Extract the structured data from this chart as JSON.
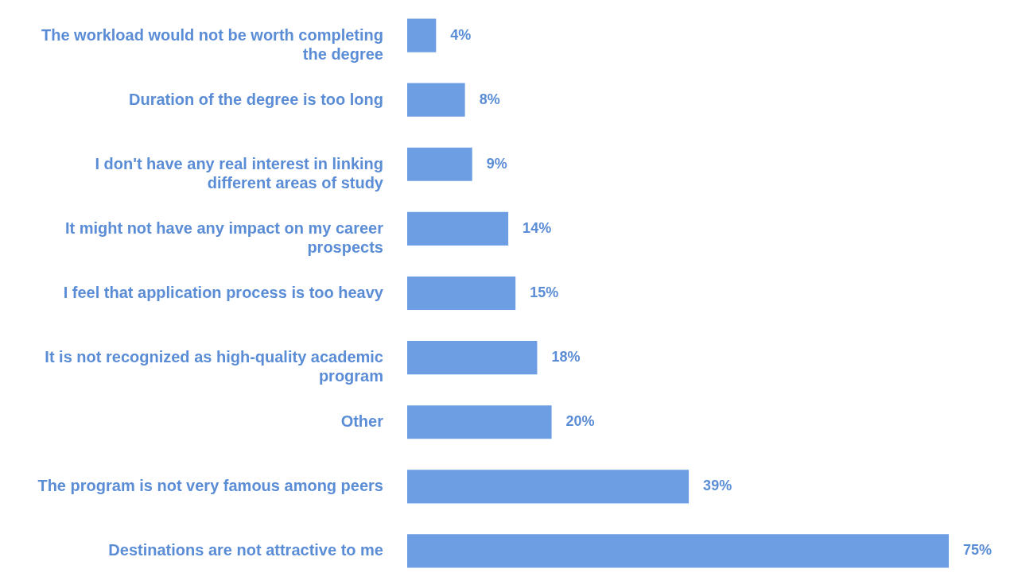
{
  "chart_data": {
    "type": "bar",
    "orientation": "horizontal",
    "categories": [
      "The workload would not be worth completing the degree",
      "Duration of the degree is too long",
      "I don't have any real interest in linking different areas of study",
      "It might not have any impact on my career prospects",
      "I feel that application process is too heavy",
      "It is not recognized as high-quality academic program",
      "Other",
      "The program is not very famous among peers",
      "Destinations are not attractive to me"
    ],
    "values": [
      4,
      8,
      9,
      14,
      15,
      18,
      20,
      39,
      75
    ],
    "value_labels": [
      "4%",
      "8%",
      "9%",
      "14%",
      "15%",
      "18%",
      "20%",
      "39%",
      "75%"
    ],
    "color": "#6d9ee3"
  }
}
